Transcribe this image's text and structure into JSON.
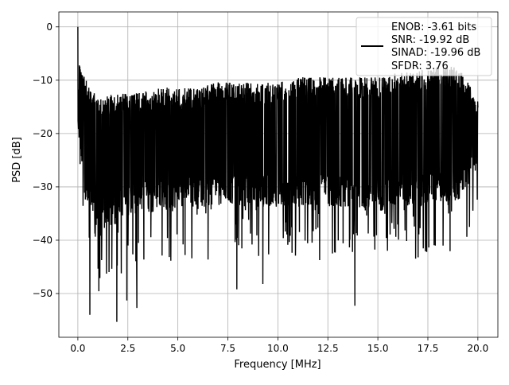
{
  "chart_data": {
    "type": "line",
    "title": "",
    "xlabel": "Frequency [MHz]",
    "ylabel": "PSD [dB]",
    "xlim": [
      -0.95,
      21.0
    ],
    "ylim": [
      -58.2,
      2.8
    ],
    "xticks": [
      0.0,
      2.5,
      5.0,
      7.5,
      10.0,
      12.5,
      15.0,
      17.5,
      20.0
    ],
    "xtick_labels": [
      "0.0",
      "2.5",
      "5.0",
      "7.5",
      "10.0",
      "12.5",
      "15.0",
      "17.5",
      "20.0"
    ],
    "yticks": [
      0,
      -10,
      -20,
      -30,
      -40,
      -50
    ],
    "ytick_labels": [
      "0",
      "−10",
      "−20",
      "−30",
      "−40",
      "−50"
    ],
    "grid": true,
    "legend_position": "top-right",
    "legend_lines": [
      "ENOB: -3.61 bits",
      "SNR: -19.92 dB",
      "SINAD: -19.96 dB",
      "SFDR: 3.76"
    ],
    "line_color": "#000000",
    "x_range": [
      0.0,
      20.0
    ],
    "upper_envelope_mean": -14,
    "lower_envelope_mean": -31,
    "peak": {
      "x": 0.0,
      "y": 0.0
    },
    "notable_dips": [
      {
        "x": 0.6,
        "y": -54.0
      },
      {
        "x": 1.95,
        "y": -55.3
      },
      {
        "x": 2.45,
        "y": -51.3
      },
      {
        "x": 2.95,
        "y": -52.7
      },
      {
        "x": 7.95,
        "y": -49.2
      },
      {
        "x": 9.25,
        "y": -48.2
      },
      {
        "x": 13.85,
        "y": -52.3
      }
    ],
    "noise_series": {
      "x": [
        0.0,
        1.0,
        2.0,
        3.0,
        4.0,
        5.0,
        6.0,
        7.0,
        8.0,
        9.0,
        10.0,
        11.0,
        12.0,
        13.0,
        14.0,
        15.0,
        16.0,
        17.0,
        18.0,
        19.0,
        20.0
      ],
      "upper": [
        -8,
        -15,
        -14,
        -14,
        -13,
        -13,
        -13,
        -12,
        -12,
        -12,
        -12,
        -11,
        -11,
        -11,
        -11,
        -11,
        -10,
        -10,
        -9,
        -9,
        -15
      ],
      "lower": [
        -25,
        -38,
        -35,
        -33,
        -33,
        -32,
        -32,
        -32,
        -32,
        -32,
        -32,
        -32,
        -32,
        -32,
        -32,
        -33,
        -32,
        -32,
        -31,
        -31,
        -25
      ]
    },
    "series": [
      {
        "values_ref": "noise_series"
      }
    ]
  }
}
